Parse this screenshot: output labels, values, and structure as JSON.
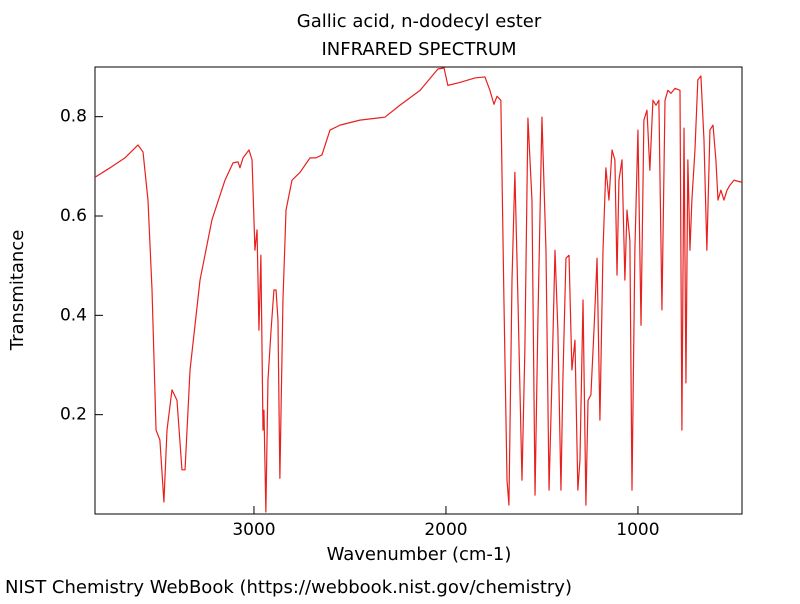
{
  "chart_data": {
    "type": "line",
    "title": "Gallic acid, n-dodecyl ester",
    "subtitle": "INFRARED SPECTRUM",
    "x_label": "Wavenumber (cm-1)",
    "y_label": "Transmitance",
    "footer": "NIST Chemistry WebBook (https://webbook.nist.gov/chemistry)",
    "xlim": [
      3828,
      458
    ],
    "ylim": [
      0,
      0.9
    ],
    "xticks": [
      3000,
      2000,
      1000
    ],
    "yticks": [
      0.2,
      0.4,
      0.6,
      0.8
    ],
    "grid": false,
    "x": [
      3828,
      3750,
      3672,
      3604,
      3578,
      3552,
      3531,
      3510,
      3490,
      3469,
      3453,
      3427,
      3401,
      3375,
      3359,
      3333,
      3281,
      3219,
      3151,
      3109,
      3083,
      3073,
      3057,
      3026,
      3010,
      2995,
      2984,
      2974,
      2964,
      2953,
      2948,
      2938,
      2927,
      2911,
      2896,
      2885,
      2875,
      2865,
      2849,
      2833,
      2802,
      2760,
      2708,
      2677,
      2646,
      2604,
      2552,
      2448,
      2318,
      2240,
      2135,
      2042,
      2010,
      1990,
      1927,
      1849,
      1797,
      1771,
      1750,
      1734,
      1714,
      1698,
      1682,
      1672,
      1656,
      1641,
      1625,
      1604,
      1589,
      1573,
      1552,
      1536,
      1521,
      1500,
      1479,
      1463,
      1448,
      1432,
      1417,
      1401,
      1391,
      1375,
      1359,
      1344,
      1328,
      1313,
      1302,
      1286,
      1271,
      1260,
      1245,
      1229,
      1213,
      1198,
      1182,
      1167,
      1151,
      1135,
      1120,
      1109,
      1099,
      1083,
      1068,
      1057,
      1042,
      1031,
      1016,
      1000,
      984,
      969,
      953,
      938,
      922,
      906,
      891,
      875,
      859,
      844,
      828,
      807,
      781,
      771,
      760,
      750,
      740,
      729,
      719,
      703,
      688,
      672,
      656,
      641,
      625,
      609,
      594,
      583,
      568,
      552,
      536,
      521,
      500,
      458
    ],
    "series": [
      {
        "name": "Transmitance",
        "color": "#e8201e",
        "values": [
          0.678,
          0.697,
          0.717,
          0.743,
          0.729,
          0.632,
          0.451,
          0.169,
          0.149,
          0.024,
          0.169,
          0.25,
          0.229,
          0.089,
          0.089,
          0.29,
          0.471,
          0.592,
          0.672,
          0.707,
          0.709,
          0.697,
          0.717,
          0.733,
          0.713,
          0.531,
          0.572,
          0.37,
          0.521,
          0.169,
          0.209,
          0.004,
          0.27,
          0.37,
          0.451,
          0.451,
          0.391,
          0.072,
          0.431,
          0.612,
          0.672,
          0.688,
          0.717,
          0.717,
          0.723,
          0.773,
          0.783,
          0.793,
          0.799,
          0.823,
          0.853,
          0.896,
          0.898,
          0.863,
          0.869,
          0.878,
          0.88,
          0.853,
          0.825,
          0.841,
          0.833,
          0.431,
          0.068,
          0.018,
          0.471,
          0.688,
          0.431,
          0.068,
          0.33,
          0.797,
          0.632,
          0.038,
          0.391,
          0.799,
          0.531,
          0.048,
          0.27,
          0.531,
          0.37,
          0.048,
          0.27,
          0.515,
          0.521,
          0.29,
          0.35,
          0.048,
          0.109,
          0.431,
          0.018,
          0.229,
          0.24,
          0.37,
          0.515,
          0.189,
          0.531,
          0.697,
          0.632,
          0.733,
          0.713,
          0.481,
          0.672,
          0.713,
          0.471,
          0.612,
          0.551,
          0.048,
          0.531,
          0.773,
          0.38,
          0.793,
          0.813,
          0.692,
          0.833,
          0.823,
          0.833,
          0.411,
          0.833,
          0.853,
          0.847,
          0.857,
          0.853,
          0.169,
          0.777,
          0.264,
          0.713,
          0.531,
          0.632,
          0.733,
          0.874,
          0.882,
          0.753,
          0.531,
          0.773,
          0.783,
          0.713,
          0.632,
          0.652,
          0.632,
          0.652,
          0.662,
          0.672,
          0.668
        ]
      }
    ]
  }
}
